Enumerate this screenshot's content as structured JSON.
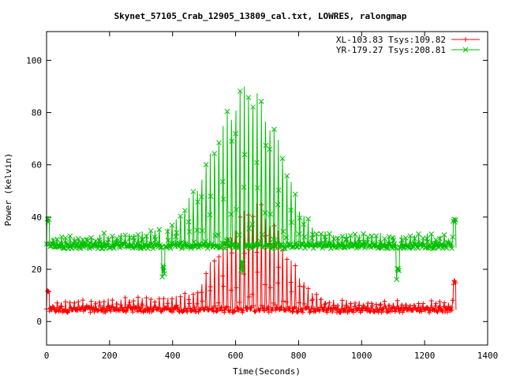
{
  "chart_data": {
    "type": "line",
    "title": "Skynet_57105_Crab_12905_13809_cal.txt, LOWRES, ralongmap",
    "xlabel": "Time(Seconds)",
    "ylabel": "Power (kelvin)",
    "xlim": [
      0,
      1400
    ],
    "ylim": [
      -9,
      111
    ],
    "xticks": [
      0,
      200,
      400,
      600,
      800,
      1000,
      1200,
      1400
    ],
    "yticks": [
      0,
      20,
      40,
      60,
      80,
      100
    ],
    "grid": false,
    "legend_position": "top-right",
    "series": [
      {
        "name": "XL-103.83 Tsys:109.82",
        "color": "#ff0000",
        "marker": "plus",
        "baseline": 4.5,
        "scan_period_s": 13.5,
        "envelope": [
          [
            0,
            7
          ],
          [
            200,
            8
          ],
          [
            400,
            9
          ],
          [
            480,
            12
          ],
          [
            520,
            22
          ],
          [
            560,
            30
          ],
          [
            600,
            38
          ],
          [
            640,
            46
          ],
          [
            680,
            45
          ],
          [
            720,
            38
          ],
          [
            760,
            28
          ],
          [
            800,
            18
          ],
          [
            850,
            11
          ],
          [
            900,
            8
          ],
          [
            1000,
            7
          ],
          [
            1200,
            7
          ],
          [
            1290,
            8
          ]
        ],
        "spikes": [
          [
            5,
            13
          ],
          [
            1295,
            16
          ]
        ]
      },
      {
        "name": "YR-179.27 Tsys:208.81",
        "color": "#00c000",
        "marker": "cross",
        "baseline": 29,
        "scan_period_s": 13.5,
        "envelope": [
          [
            0,
            32
          ],
          [
            200,
            33
          ],
          [
            380,
            35
          ],
          [
            420,
            40
          ],
          [
            460,
            48
          ],
          [
            500,
            58
          ],
          [
            540,
            70
          ],
          [
            580,
            82
          ],
          [
            610,
            88
          ],
          [
            635,
            92
          ],
          [
            660,
            89
          ],
          [
            690,
            84
          ],
          [
            720,
            76
          ],
          [
            750,
            65
          ],
          [
            780,
            52
          ],
          [
            810,
            42
          ],
          [
            850,
            35
          ],
          [
            900,
            33
          ],
          [
            1000,
            33
          ],
          [
            1200,
            33
          ],
          [
            1290,
            32
          ]
        ],
        "dips": [
          [
            370,
            17
          ],
          [
            620,
            19
          ],
          [
            1115,
            16
          ]
        ],
        "spikes": [
          [
            5,
            40
          ],
          [
            1295,
            40
          ]
        ]
      }
    ]
  }
}
